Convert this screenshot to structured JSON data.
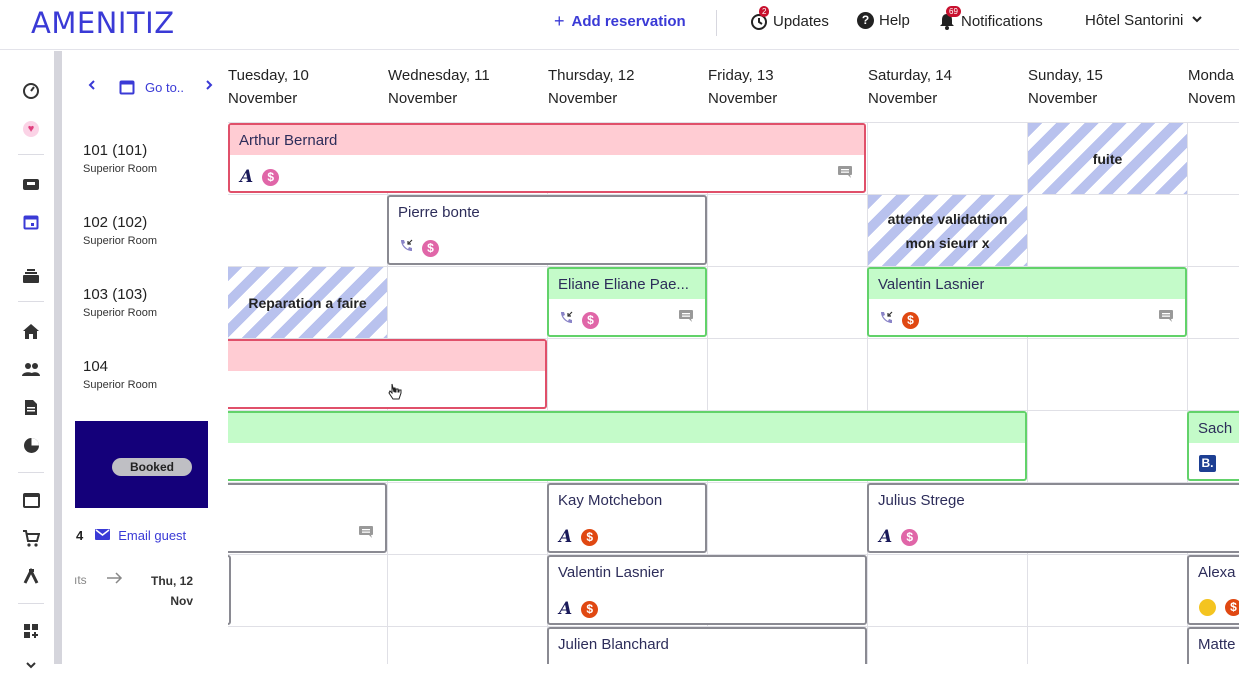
{
  "header": {
    "logo": "AMENITIZ",
    "add_reservation": "Add reservation",
    "updates": "Updates",
    "updates_badge": "2",
    "help": "Help",
    "notifications": "Notifications",
    "notifications_badge": "69",
    "hotel": "Hôtel Santorini"
  },
  "nav": {
    "goto": "Go to.."
  },
  "days": [
    {
      "l1": "Tuesday, 10",
      "l2": "November"
    },
    {
      "l1": "Wednesday, 11",
      "l2": "November"
    },
    {
      "l1": "Thursday, 12",
      "l2": "November"
    },
    {
      "l1": "Friday, 13",
      "l2": "November"
    },
    {
      "l1": "Saturday, 14",
      "l2": "November"
    },
    {
      "l1": "Sunday, 15",
      "l2": "November"
    },
    {
      "l1": "Monda",
      "l2": "Novem"
    }
  ],
  "rooms": [
    {
      "num": "101 (101)",
      "type": "Superior Room"
    },
    {
      "num": "102 (102)",
      "type": "Superior Room"
    },
    {
      "num": "103 (103)",
      "type": "Superior Room"
    },
    {
      "num": "104",
      "type": "Superior Room"
    }
  ],
  "popup": {
    "status": "Booked",
    "count": "4",
    "email_guest": "Email guest",
    "nights_partial": "ıts",
    "checkout_day": "Thu, 12",
    "checkout_month": "Nov"
  },
  "bookings": {
    "b1": "Arthur Bernard",
    "b2": "Pierre bonte",
    "b3": "Eliane Eliane Pae...",
    "b4": "Valentin Lasnier",
    "b5": "Sach",
    "b6": "Kay Motchebon",
    "b7": "Julius Strege",
    "b8": "Valentin Lasnier",
    "b9": "Alexa",
    "b10": "Julien Blanchard",
    "b11": "Matte"
  },
  "blocks": {
    "fuite": "fuite",
    "attente_l1": "attente validattion",
    "attente_l2": "mon sieurr x",
    "reparation": "Reparation a faire"
  },
  "colors": {
    "accent": "#3a3ad6",
    "red_band": "#ffccd3",
    "green_band": "#c4fbc9",
    "popup_bg": "#14007a"
  }
}
